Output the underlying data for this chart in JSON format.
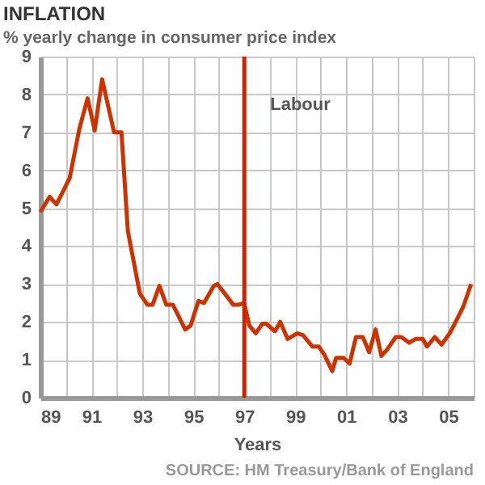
{
  "chart_data": {
    "type": "line",
    "title": "INFLATION",
    "subtitle": "% yearly change in consumer price index",
    "xlabel": "Years",
    "annotations": [
      "SOURCE: HM Treasury/Bank of England"
    ],
    "x": [
      1989.0,
      1989.36,
      1989.63,
      1990.15,
      1990.53,
      1990.85,
      1991.13,
      1991.42,
      1991.89,
      1992.18,
      1992.43,
      1992.9,
      1993.2,
      1993.4,
      1993.67,
      1993.94,
      1994.2,
      1994.68,
      1994.89,
      1995.2,
      1995.42,
      1995.8,
      1995.94,
      1996.57,
      1996.77,
      1996.99,
      1997.2,
      1997.45,
      1997.7,
      1997.87,
      1998.2,
      1998.41,
      1998.7,
      1999.08,
      1999.3,
      1999.67,
      1999.92,
      2000.13,
      2000.45,
      2000.6,
      2000.9,
      2001.13,
      2001.38,
      2001.65,
      2001.9,
      2002.15,
      2002.38,
      2002.58,
      2002.94,
      2003.16,
      2003.47,
      2003.72,
      2004.0,
      2004.17,
      2004.47,
      2004.74,
      2005.06,
      2005.33,
      2005.59,
      2005.9
    ],
    "series": [
      {
        "color": "#cc3300",
        "values": [
          4.9,
          5.3,
          5.1,
          5.8,
          7.1,
          7.9,
          7.05,
          8.4,
          7.0,
          7.0,
          4.4,
          2.75,
          2.45,
          2.45,
          2.95,
          2.45,
          2.45,
          1.8,
          1.9,
          2.55,
          2.5,
          2.95,
          3.0,
          2.45,
          2.45,
          2.5,
          1.9,
          1.7,
          1.95,
          1.95,
          1.75,
          2.0,
          1.55,
          1.7,
          1.65,
          1.35,
          1.35,
          1.15,
          0.7,
          1.05,
          1.05,
          0.9,
          1.6,
          1.6,
          1.2,
          1.8,
          1.1,
          1.25,
          1.6,
          1.6,
          1.45,
          1.55,
          1.55,
          1.35,
          1.6,
          1.4,
          1.7,
          2.05,
          2.4,
          3.0
        ]
      }
    ],
    "xlim": [
      1989,
      2006
    ],
    "ylim": [
      0,
      9
    ],
    "xticks": [
      {
        "value": 1989,
        "label": "89"
      },
      {
        "value": 1990,
        "label": null
      },
      {
        "value": 1991,
        "label": "91"
      },
      {
        "value": 1992,
        "label": null
      },
      {
        "value": 1993,
        "label": "93"
      },
      {
        "value": 1994,
        "label": null
      },
      {
        "value": 1995,
        "label": "95"
      },
      {
        "value": 1996,
        "label": null
      },
      {
        "value": 1997,
        "label": "97"
      },
      {
        "value": 1998,
        "label": null
      },
      {
        "value": 1999,
        "label": "99"
      },
      {
        "value": 2000,
        "label": null
      },
      {
        "value": 2001,
        "label": "01"
      },
      {
        "value": 2002,
        "label": null
      },
      {
        "value": 2003,
        "label": "03"
      },
      {
        "value": 2004,
        "label": null
      },
      {
        "value": 2005,
        "label": "05"
      },
      {
        "value": 2006,
        "label": null
      }
    ],
    "yticks": [
      0,
      1,
      2,
      3,
      4,
      5,
      6,
      7,
      8,
      9
    ],
    "ref_lines": [
      {
        "axis": "x",
        "value": 1997,
        "label": "Labour",
        "color": "#cc2200"
      }
    ],
    "grid": true,
    "legend": false,
    "marker": "none",
    "line_style": "solid"
  }
}
